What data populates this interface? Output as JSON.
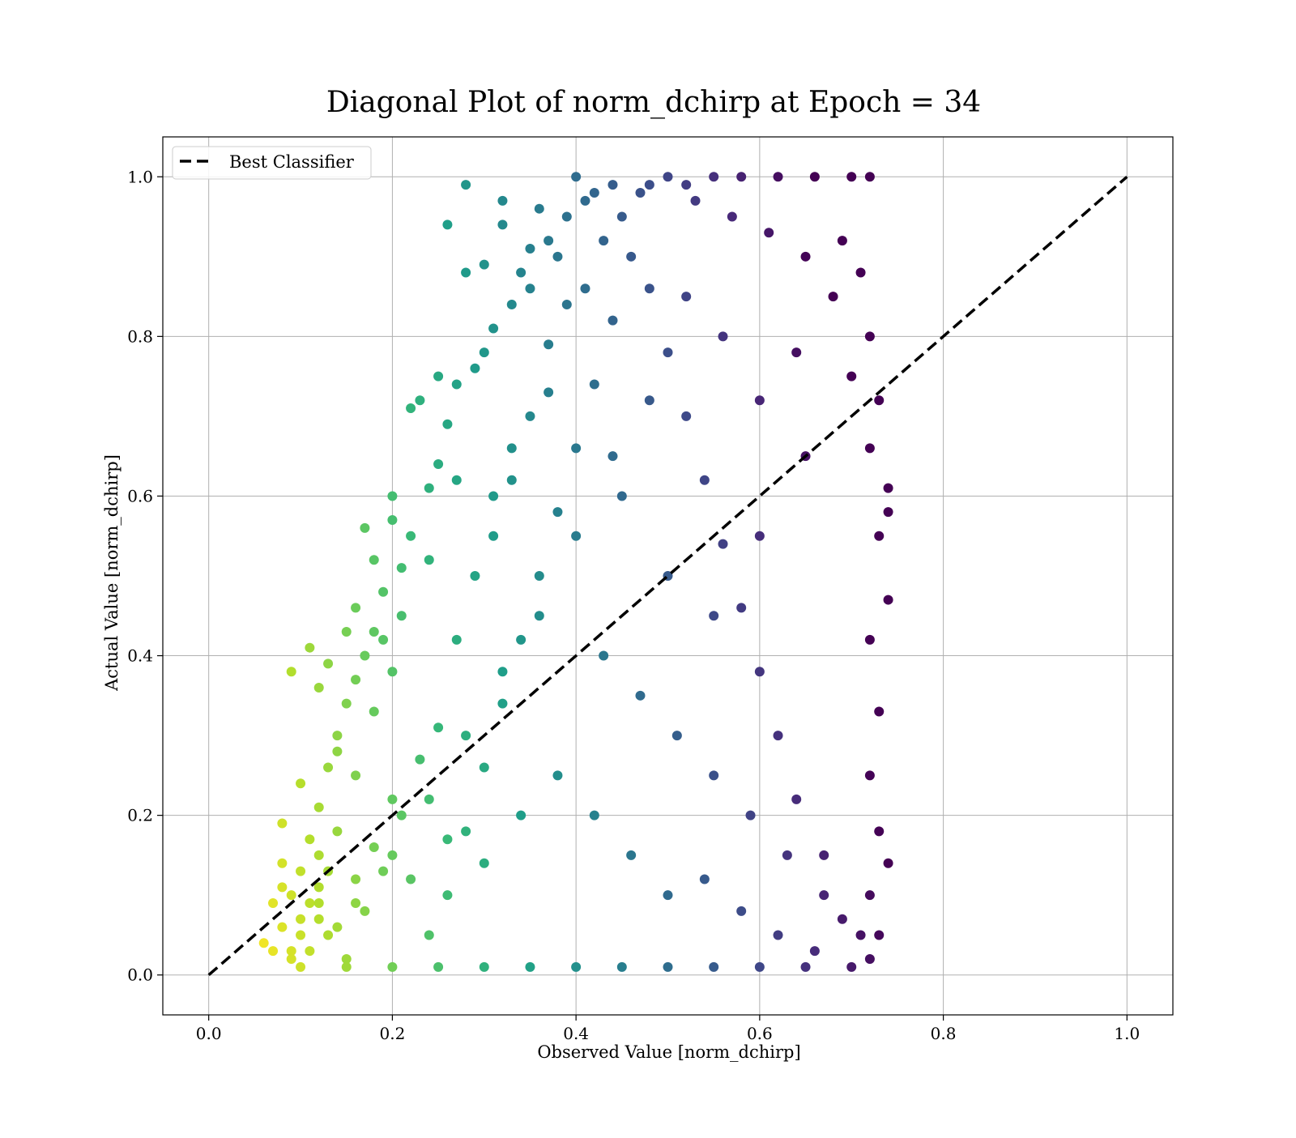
{
  "chart_data": {
    "type": "scatter",
    "title": "Diagonal Plot of norm_dchirp at Epoch = 34",
    "xlabel": "Observed Value [norm_dchirp]",
    "ylabel": "Actual Value [norm_dchirp]",
    "xlim": [
      -0.05,
      1.05
    ],
    "ylim": [
      -0.05,
      1.05
    ],
    "x_ticks": [
      0.0,
      0.2,
      0.4,
      0.6,
      0.8,
      1.0
    ],
    "y_ticks": [
      0.0,
      0.2,
      0.4,
      0.6,
      0.8,
      1.0
    ],
    "x_tick_labels": [
      "0.0",
      "0.2",
      "0.4",
      "0.6",
      "0.8",
      "1.0"
    ],
    "y_tick_labels": [
      "0.0",
      "0.2",
      "0.4",
      "0.6",
      "0.8",
      "1.0"
    ],
    "grid": true,
    "legend": {
      "position": "top-left",
      "entries": [
        "Best Classifier"
      ]
    },
    "reference_line": {
      "name": "Best Classifier",
      "style": "dashed",
      "color": "#000000",
      "x": [
        0.0,
        1.0
      ],
      "y": [
        0.0,
        1.0
      ]
    },
    "colormap": "viridis",
    "scatter_points": [
      [
        0.06,
        0.04
      ],
      [
        0.07,
        0.09
      ],
      [
        0.08,
        0.14
      ],
      [
        0.08,
        0.19
      ],
      [
        0.09,
        0.38
      ],
      [
        0.1,
        0.24
      ],
      [
        0.11,
        0.41
      ],
      [
        0.12,
        0.36
      ],
      [
        0.13,
        0.39
      ],
      [
        0.1,
        0.07
      ],
      [
        0.12,
        0.15
      ],
      [
        0.14,
        0.28
      ],
      [
        0.15,
        0.43
      ],
      [
        0.16,
        0.46
      ],
      [
        0.17,
        0.56
      ],
      [
        0.18,
        0.52
      ],
      [
        0.19,
        0.48
      ],
      [
        0.2,
        0.6
      ],
      [
        0.2,
        0.57
      ],
      [
        0.22,
        0.71
      ],
      [
        0.23,
        0.72
      ],
      [
        0.25,
        0.75
      ],
      [
        0.26,
        0.94
      ],
      [
        0.28,
        0.99
      ],
      [
        0.28,
        0.88
      ],
      [
        0.3,
        0.78
      ],
      [
        0.3,
        0.89
      ],
      [
        0.32,
        0.97
      ],
      [
        0.32,
        0.94
      ],
      [
        0.34,
        0.88
      ],
      [
        0.35,
        0.91
      ],
      [
        0.36,
        0.96
      ],
      [
        0.38,
        0.9
      ],
      [
        0.4,
        1.0
      ],
      [
        0.41,
        0.97
      ],
      [
        0.42,
        0.98
      ],
      [
        0.37,
        0.73
      ],
      [
        0.33,
        0.66
      ],
      [
        0.31,
        0.6
      ],
      [
        0.27,
        0.62
      ],
      [
        0.24,
        0.52
      ],
      [
        0.21,
        0.45
      ],
      [
        0.2,
        0.38
      ],
      [
        0.18,
        0.33
      ],
      [
        0.16,
        0.25
      ],
      [
        0.14,
        0.18
      ],
      [
        0.12,
        0.11
      ],
      [
        0.11,
        0.03
      ],
      [
        0.13,
        0.05
      ],
      [
        0.15,
        0.02
      ],
      [
        0.17,
        0.08
      ],
      [
        0.19,
        0.13
      ],
      [
        0.21,
        0.2
      ],
      [
        0.23,
        0.27
      ],
      [
        0.25,
        0.31
      ],
      [
        0.27,
        0.42
      ],
      [
        0.29,
        0.5
      ],
      [
        0.31,
        0.55
      ],
      [
        0.33,
        0.62
      ],
      [
        0.35,
        0.7
      ],
      [
        0.37,
        0.79
      ],
      [
        0.39,
        0.84
      ],
      [
        0.41,
        0.86
      ],
      [
        0.43,
        0.92
      ],
      [
        0.45,
        0.95
      ],
      [
        0.47,
        0.98
      ],
      [
        0.5,
        1.0
      ],
      [
        0.52,
        0.99
      ],
      [
        0.55,
        1.0
      ],
      [
        0.58,
        1.0
      ],
      [
        0.62,
        1.0
      ],
      [
        0.66,
        1.0
      ],
      [
        0.7,
        1.0
      ],
      [
        0.72,
        1.0
      ],
      [
        0.74,
        0.61
      ],
      [
        0.74,
        0.58
      ],
      [
        0.74,
        0.47
      ],
      [
        0.74,
        0.14
      ],
      [
        0.73,
        0.05
      ],
      [
        0.72,
        0.02
      ],
      [
        0.7,
        0.01
      ],
      [
        0.65,
        0.01
      ],
      [
        0.6,
        0.01
      ],
      [
        0.55,
        0.01
      ],
      [
        0.5,
        0.01
      ],
      [
        0.45,
        0.01
      ],
      [
        0.4,
        0.01
      ],
      [
        0.35,
        0.01
      ],
      [
        0.3,
        0.01
      ],
      [
        0.25,
        0.01
      ],
      [
        0.2,
        0.01
      ],
      [
        0.15,
        0.01
      ],
      [
        0.1,
        0.01
      ],
      [
        0.09,
        0.03
      ],
      [
        0.09,
        0.1
      ],
      [
        0.1,
        0.13
      ],
      [
        0.11,
        0.17
      ],
      [
        0.12,
        0.21
      ],
      [
        0.13,
        0.26
      ],
      [
        0.14,
        0.3
      ],
      [
        0.15,
        0.34
      ],
      [
        0.16,
        0.37
      ],
      [
        0.17,
        0.4
      ],
      [
        0.18,
        0.43
      ],
      [
        0.19,
        0.42
      ],
      [
        0.21,
        0.51
      ],
      [
        0.22,
        0.55
      ],
      [
        0.24,
        0.61
      ],
      [
        0.25,
        0.64
      ],
      [
        0.26,
        0.69
      ],
      [
        0.27,
        0.74
      ],
      [
        0.29,
        0.76
      ],
      [
        0.31,
        0.81
      ],
      [
        0.33,
        0.84
      ],
      [
        0.35,
        0.86
      ],
      [
        0.37,
        0.92
      ],
      [
        0.39,
        0.95
      ],
      [
        0.44,
        0.99
      ],
      [
        0.48,
        0.99
      ],
      [
        0.53,
        0.97
      ],
      [
        0.57,
        0.95
      ],
      [
        0.61,
        0.93
      ],
      [
        0.65,
        0.9
      ],
      [
        0.69,
        0.92
      ],
      [
        0.71,
        0.88
      ],
      [
        0.72,
        0.8
      ],
      [
        0.73,
        0.72
      ],
      [
        0.72,
        0.66
      ],
      [
        0.73,
        0.55
      ],
      [
        0.72,
        0.42
      ],
      [
        0.73,
        0.33
      ],
      [
        0.72,
        0.25
      ],
      [
        0.73,
        0.18
      ],
      [
        0.72,
        0.1
      ],
      [
        0.69,
        0.07
      ],
      [
        0.67,
        0.15
      ],
      [
        0.64,
        0.22
      ],
      [
        0.62,
        0.3
      ],
      [
        0.6,
        0.38
      ],
      [
        0.58,
        0.46
      ],
      [
        0.56,
        0.54
      ],
      [
        0.54,
        0.62
      ],
      [
        0.52,
        0.7
      ],
      [
        0.5,
        0.78
      ],
      [
        0.48,
        0.86
      ],
      [
        0.46,
        0.9
      ],
      [
        0.44,
        0.82
      ],
      [
        0.42,
        0.74
      ],
      [
        0.4,
        0.66
      ],
      [
        0.38,
        0.58
      ],
      [
        0.36,
        0.5
      ],
      [
        0.34,
        0.42
      ],
      [
        0.32,
        0.34
      ],
      [
        0.3,
        0.26
      ],
      [
        0.28,
        0.18
      ],
      [
        0.26,
        0.1
      ],
      [
        0.24,
        0.05
      ],
      [
        0.22,
        0.12
      ],
      [
        0.2,
        0.22
      ],
      [
        0.18,
        0.16
      ],
      [
        0.16,
        0.09
      ],
      [
        0.14,
        0.06
      ],
      [
        0.13,
        0.13
      ],
      [
        0.12,
        0.07
      ],
      [
        0.11,
        0.09
      ],
      [
        0.1,
        0.05
      ],
      [
        0.09,
        0.02
      ],
      [
        0.08,
        0.06
      ],
      [
        0.07,
        0.03
      ],
      [
        0.08,
        0.11
      ],
      [
        0.43,
        0.4
      ],
      [
        0.47,
        0.35
      ],
      [
        0.51,
        0.3
      ],
      [
        0.55,
        0.25
      ],
      [
        0.59,
        0.2
      ],
      [
        0.63,
        0.15
      ],
      [
        0.67,
        0.1
      ],
      [
        0.71,
        0.05
      ],
      [
        0.45,
        0.6
      ],
      [
        0.5,
        0.5
      ],
      [
        0.55,
        0.45
      ],
      [
        0.6,
        0.55
      ],
      [
        0.65,
        0.65
      ],
      [
        0.7,
        0.75
      ],
      [
        0.68,
        0.85
      ],
      [
        0.64,
        0.78
      ],
      [
        0.6,
        0.72
      ],
      [
        0.56,
        0.8
      ],
      [
        0.52,
        0.85
      ],
      [
        0.48,
        0.72
      ],
      [
        0.44,
        0.65
      ],
      [
        0.4,
        0.55
      ],
      [
        0.36,
        0.45
      ],
      [
        0.32,
        0.38
      ],
      [
        0.28,
        0.3
      ],
      [
        0.24,
        0.22
      ],
      [
        0.2,
        0.15
      ],
      [
        0.16,
        0.12
      ],
      [
        0.12,
        0.09
      ],
      [
        0.42,
        0.2
      ],
      [
        0.46,
        0.15
      ],
      [
        0.5,
        0.1
      ],
      [
        0.54,
        0.12
      ],
      [
        0.58,
        0.08
      ],
      [
        0.62,
        0.05
      ],
      [
        0.66,
        0.03
      ],
      [
        0.38,
        0.25
      ],
      [
        0.34,
        0.2
      ],
      [
        0.3,
        0.14
      ],
      [
        0.26,
        0.17
      ]
    ]
  }
}
